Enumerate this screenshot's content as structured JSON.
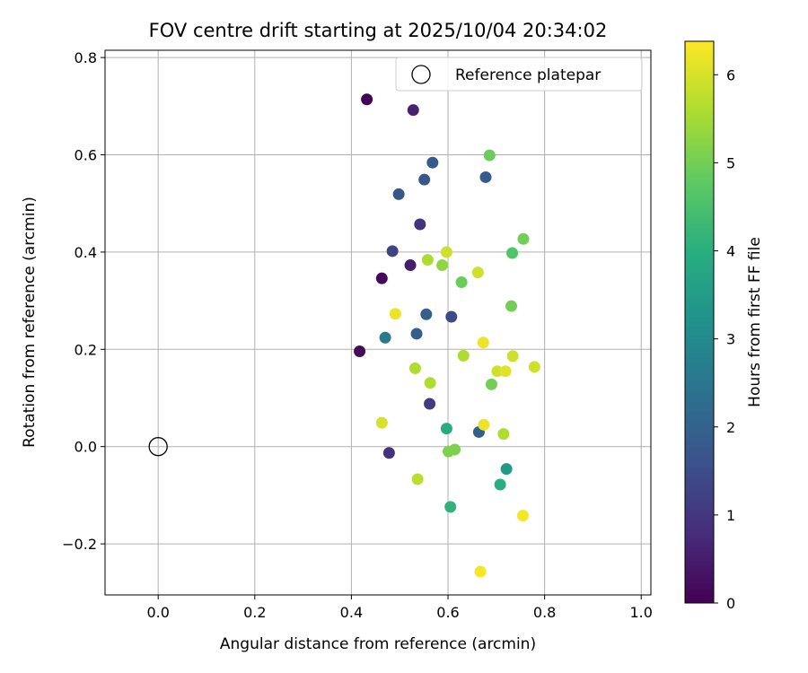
{
  "chart_data": {
    "type": "scatter",
    "title": "FOV centre drift starting at 2025/10/04 20:34:02",
    "xlabel": "Angular distance from reference (arcmin)",
    "ylabel": "Rotation from reference (arcmin)",
    "xlim": [
      -0.11,
      1.02
    ],
    "ylim": [
      -0.305,
      0.815
    ],
    "xticks": [
      0.0,
      0.2,
      0.4,
      0.6,
      0.8,
      1.0
    ],
    "xtick_labels": [
      "0.0",
      "0.2",
      "0.4",
      "0.6",
      "0.8",
      "1.0"
    ],
    "yticks": [
      -0.2,
      0.0,
      0.2,
      0.4,
      0.6,
      0.8
    ],
    "ytick_labels": [
      "−0.2",
      "0.0",
      "0.2",
      "0.4",
      "0.6",
      "0.8"
    ],
    "grid": true,
    "legend": {
      "label": "Reference platepar",
      "position": "top-right"
    },
    "reference_point": {
      "x": 0.0,
      "y": 0.0
    },
    "colorbar": {
      "label": "Hours from first FF file",
      "range": [
        0,
        6.38
      ],
      "ticks": [
        0,
        1,
        2,
        3,
        4,
        5,
        6
      ],
      "tick_labels": [
        "0",
        "1",
        "2",
        "3",
        "4",
        "5",
        "6"
      ],
      "colormap": "viridis"
    },
    "points": [
      {
        "x": 0.432,
        "y": 0.714,
        "h": 0.05
      },
      {
        "x": 0.528,
        "y": 0.692,
        "h": 0.6
      },
      {
        "x": 0.463,
        "y": 0.346,
        "h": 0.15
      },
      {
        "x": 0.417,
        "y": 0.196,
        "h": 0.2
      },
      {
        "x": 0.522,
        "y": 0.373,
        "h": 0.5
      },
      {
        "x": 0.542,
        "y": 0.457,
        "h": 0.9
      },
      {
        "x": 0.478,
        "y": -0.013,
        "h": 0.9
      },
      {
        "x": 0.562,
        "y": 0.088,
        "h": 1.1
      },
      {
        "x": 0.607,
        "y": 0.267,
        "h": 1.4
      },
      {
        "x": 0.485,
        "y": 0.402,
        "h": 1.3
      },
      {
        "x": 0.498,
        "y": 0.519,
        "h": 1.7
      },
      {
        "x": 0.551,
        "y": 0.549,
        "h": 1.7
      },
      {
        "x": 0.568,
        "y": 0.584,
        "h": 1.8
      },
      {
        "x": 0.678,
        "y": 0.554,
        "h": 1.8
      },
      {
        "x": 0.535,
        "y": 0.232,
        "h": 1.9
      },
      {
        "x": 0.555,
        "y": 0.272,
        "h": 1.9
      },
      {
        "x": 0.664,
        "y": 0.03,
        "h": 1.9
      },
      {
        "x": 0.47,
        "y": 0.224,
        "h": 2.6
      },
      {
        "x": 0.721,
        "y": -0.046,
        "h": 3.4
      },
      {
        "x": 0.597,
        "y": 0.037,
        "h": 3.9
      },
      {
        "x": 0.708,
        "y": -0.078,
        "h": 4.0
      },
      {
        "x": 0.605,
        "y": -0.124,
        "h": 4.1
      },
      {
        "x": 0.733,
        "y": 0.398,
        "h": 4.6
      },
      {
        "x": 0.628,
        "y": 0.338,
        "h": 4.9
      },
      {
        "x": 0.686,
        "y": 0.599,
        "h": 4.9
      },
      {
        "x": 0.756,
        "y": 0.427,
        "h": 5.0
      },
      {
        "x": 0.731,
        "y": 0.289,
        "h": 5.0
      },
      {
        "x": 0.69,
        "y": 0.128,
        "h": 5.0
      },
      {
        "x": 0.601,
        "y": -0.01,
        "h": 5.1
      },
      {
        "x": 0.614,
        "y": -0.006,
        "h": 5.1
      },
      {
        "x": 0.588,
        "y": 0.373,
        "h": 5.3
      },
      {
        "x": 0.558,
        "y": 0.384,
        "h": 5.6
      },
      {
        "x": 0.632,
        "y": 0.187,
        "h": 5.6
      },
      {
        "x": 0.532,
        "y": 0.161,
        "h": 5.6
      },
      {
        "x": 0.563,
        "y": 0.131,
        "h": 5.6
      },
      {
        "x": 0.715,
        "y": 0.026,
        "h": 5.6
      },
      {
        "x": 0.537,
        "y": -0.067,
        "h": 5.7
      },
      {
        "x": 0.597,
        "y": 0.4,
        "h": 5.9
      },
      {
        "x": 0.662,
        "y": 0.358,
        "h": 5.9
      },
      {
        "x": 0.702,
        "y": 0.155,
        "h": 5.9
      },
      {
        "x": 0.734,
        "y": 0.186,
        "h": 5.9
      },
      {
        "x": 0.779,
        "y": 0.164,
        "h": 5.9
      },
      {
        "x": 0.463,
        "y": 0.049,
        "h": 6.0
      },
      {
        "x": 0.719,
        "y": 0.155,
        "h": 6.1
      },
      {
        "x": 0.491,
        "y": 0.273,
        "h": 6.2
      },
      {
        "x": 0.673,
        "y": 0.214,
        "h": 6.2
      },
      {
        "x": 0.674,
        "y": 0.045,
        "h": 6.2
      },
      {
        "x": 0.755,
        "y": -0.142,
        "h": 6.3
      },
      {
        "x": 0.667,
        "y": -0.257,
        "h": 6.3
      }
    ]
  }
}
